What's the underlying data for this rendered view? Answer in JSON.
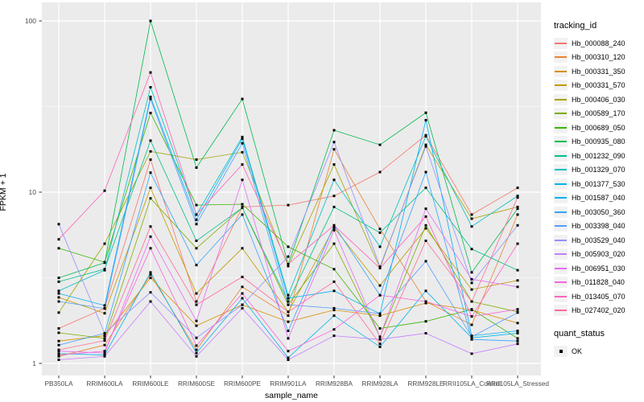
{
  "chart_data": {
    "type": "line",
    "title": "",
    "xlabel": "sample_name",
    "ylabel": "FPKM + 1",
    "yscale": "log10",
    "ylim": [
      1,
      100
    ],
    "y_ticks": [
      1,
      10,
      100
    ],
    "y_minor_ticks": [
      3.162,
      31.62
    ],
    "grid": true,
    "panel_bg": "#EBEBEB",
    "grid_color": "#FFFFFF",
    "tick_label_color": "#4D4D4D",
    "marker": "black-square",
    "legend_position": "right",
    "legend_title": "tracking_id",
    "quant_legend": {
      "title": "quant_status",
      "items": [
        "OK"
      ]
    },
    "categories": [
      "PB350LA",
      "RRIM600LA",
      "RRIM600LE",
      "RRIM600SE",
      "RRIM600PE",
      "RRIM901LA",
      "RRIM928BA",
      "RRIM928LA",
      "RRIM928LE",
      "RRII105LA_Control",
      "RRII105LA_Stressed"
    ],
    "series": [
      {
        "name": "Hb_000088_240",
        "color": "#F8766D",
        "values": [
          1.6,
          2.1,
          15.5,
          2.3,
          8.2,
          8.4,
          9.5,
          13.1,
          21.5,
          7.4,
          10.6
        ]
      },
      {
        "name": "Hb_000310_120",
        "color": "#EA8331",
        "values": [
          1.1,
          1.28,
          3.3,
          1.2,
          2.8,
          1.9,
          17.8,
          6.1,
          2.3,
          1.68,
          7.4
        ]
      },
      {
        "name": "Hb_000331_350",
        "color": "#D89000",
        "values": [
          1.35,
          1.45,
          3.16,
          1.66,
          2.2,
          1.75,
          2.05,
          1.9,
          2.25,
          2.05,
          1.72
        ]
      },
      {
        "name": "Hb_000331_570",
        "color": "#C09B00",
        "values": [
          2.43,
          1.96,
          10.6,
          2.56,
          4.7,
          2.0,
          6.2,
          2.85,
          6.15,
          2.7,
          3.05
        ]
      },
      {
        "name": "Hb_000406_030",
        "color": "#A3A500",
        "values": [
          1.98,
          5.0,
          17.3,
          15.5,
          17.1,
          3.7,
          14.5,
          3.6,
          18.9,
          7.0,
          8.2
        ]
      },
      {
        "name": "Hb_000589_170",
        "color": "#7CAE00",
        "values": [
          1.51,
          1.4,
          9.2,
          4.7,
          8.1,
          2.2,
          5.0,
          1.43,
          6.4,
          2.3,
          2.0
        ]
      },
      {
        "name": "Hb_000689_050",
        "color": "#39B600",
        "values": [
          4.7,
          3.9,
          29.0,
          8.4,
          8.5,
          4.8,
          3.55,
          1.6,
          1.76,
          2.07,
          1.4
        ]
      },
      {
        "name": "Hb_000935_080",
        "color": "#00BB4E",
        "values": [
          3.16,
          3.87,
          100.0,
          13.9,
          35.0,
          3.8,
          23.0,
          18.9,
          29.1,
          3.4,
          8.0
        ]
      },
      {
        "name": "Hb_001232_090",
        "color": "#00C08B",
        "values": [
          3.0,
          3.55,
          20.0,
          5.2,
          8.1,
          2.3,
          8.2,
          5.8,
          10.6,
          4.65,
          3.5
        ]
      },
      {
        "name": "Hb_001329_070",
        "color": "#00BFC4",
        "values": [
          2.65,
          3.5,
          41.0,
          7.4,
          21.0,
          2.5,
          11.8,
          4.8,
          21.2,
          6.3,
          9.5
        ]
      },
      {
        "name": "Hb_001377_530",
        "color": "#00B5EC",
        "values": [
          1.14,
          1.12,
          3.4,
          1.15,
          2.4,
          1.08,
          1.9,
          1.25,
          2.65,
          1.41,
          1.5
        ]
      },
      {
        "name": "Hb_001587_040",
        "color": "#00B0F6",
        "values": [
          2.56,
          2.18,
          36.0,
          6.9,
          20.5,
          2.4,
          2.65,
          1.95,
          26.3,
          1.45,
          1.55
        ]
      },
      {
        "name": "Hb_003050_360",
        "color": "#35A2FF",
        "values": [
          1.28,
          1.5,
          13.0,
          3.75,
          7.4,
          1.55,
          6.4,
          2.5,
          13.1,
          1.38,
          1.35
        ]
      },
      {
        "name": "Hb_003398_040",
        "color": "#529EFF",
        "values": [
          2.3,
          2.09,
          35.0,
          6.5,
          19.3,
          2.2,
          2.1,
          1.95,
          3.95,
          1.43,
          1.98
        ]
      },
      {
        "name": "Hb_003529_040",
        "color": "#9590FF",
        "values": [
          6.5,
          1.5,
          2.6,
          1.41,
          2.2,
          4.2,
          19.6,
          3.67,
          18.5,
          2.95,
          6.4
        ]
      },
      {
        "name": "Hb_005903_020",
        "color": "#C77CFF",
        "values": [
          1.05,
          1.1,
          2.3,
          1.1,
          2.1,
          1.05,
          1.45,
          1.38,
          1.5,
          1.14,
          1.3
        ]
      },
      {
        "name": "Hb_006951_030",
        "color": "#E76BF3",
        "values": [
          1.18,
          1.15,
          5.5,
          1.77,
          11.8,
          1.4,
          6.0,
          1.43,
          8.0,
          3.1,
          2.8
        ]
      },
      {
        "name": "Hb_011828_040",
        "color": "#FA62DB",
        "values": [
          1.12,
          1.18,
          4.7,
          1.27,
          2.56,
          1.18,
          1.58,
          2.5,
          2.3,
          1.88,
          2.07
        ]
      },
      {
        "name": "Hb_013405_070",
        "color": "#FF62BC",
        "values": [
          5.3,
          10.2,
          50.0,
          7.4,
          14.5,
          3.8,
          6.4,
          3.6,
          7.2,
          1.88,
          5.0
        ]
      },
      {
        "name": "Hb_027402_020",
        "color": "#FF6A98",
        "values": [
          1.2,
          1.36,
          6.3,
          2.2,
          3.2,
          2.0,
          3.0,
          1.3,
          5.2,
          2.3,
          9.3
        ]
      }
    ]
  }
}
